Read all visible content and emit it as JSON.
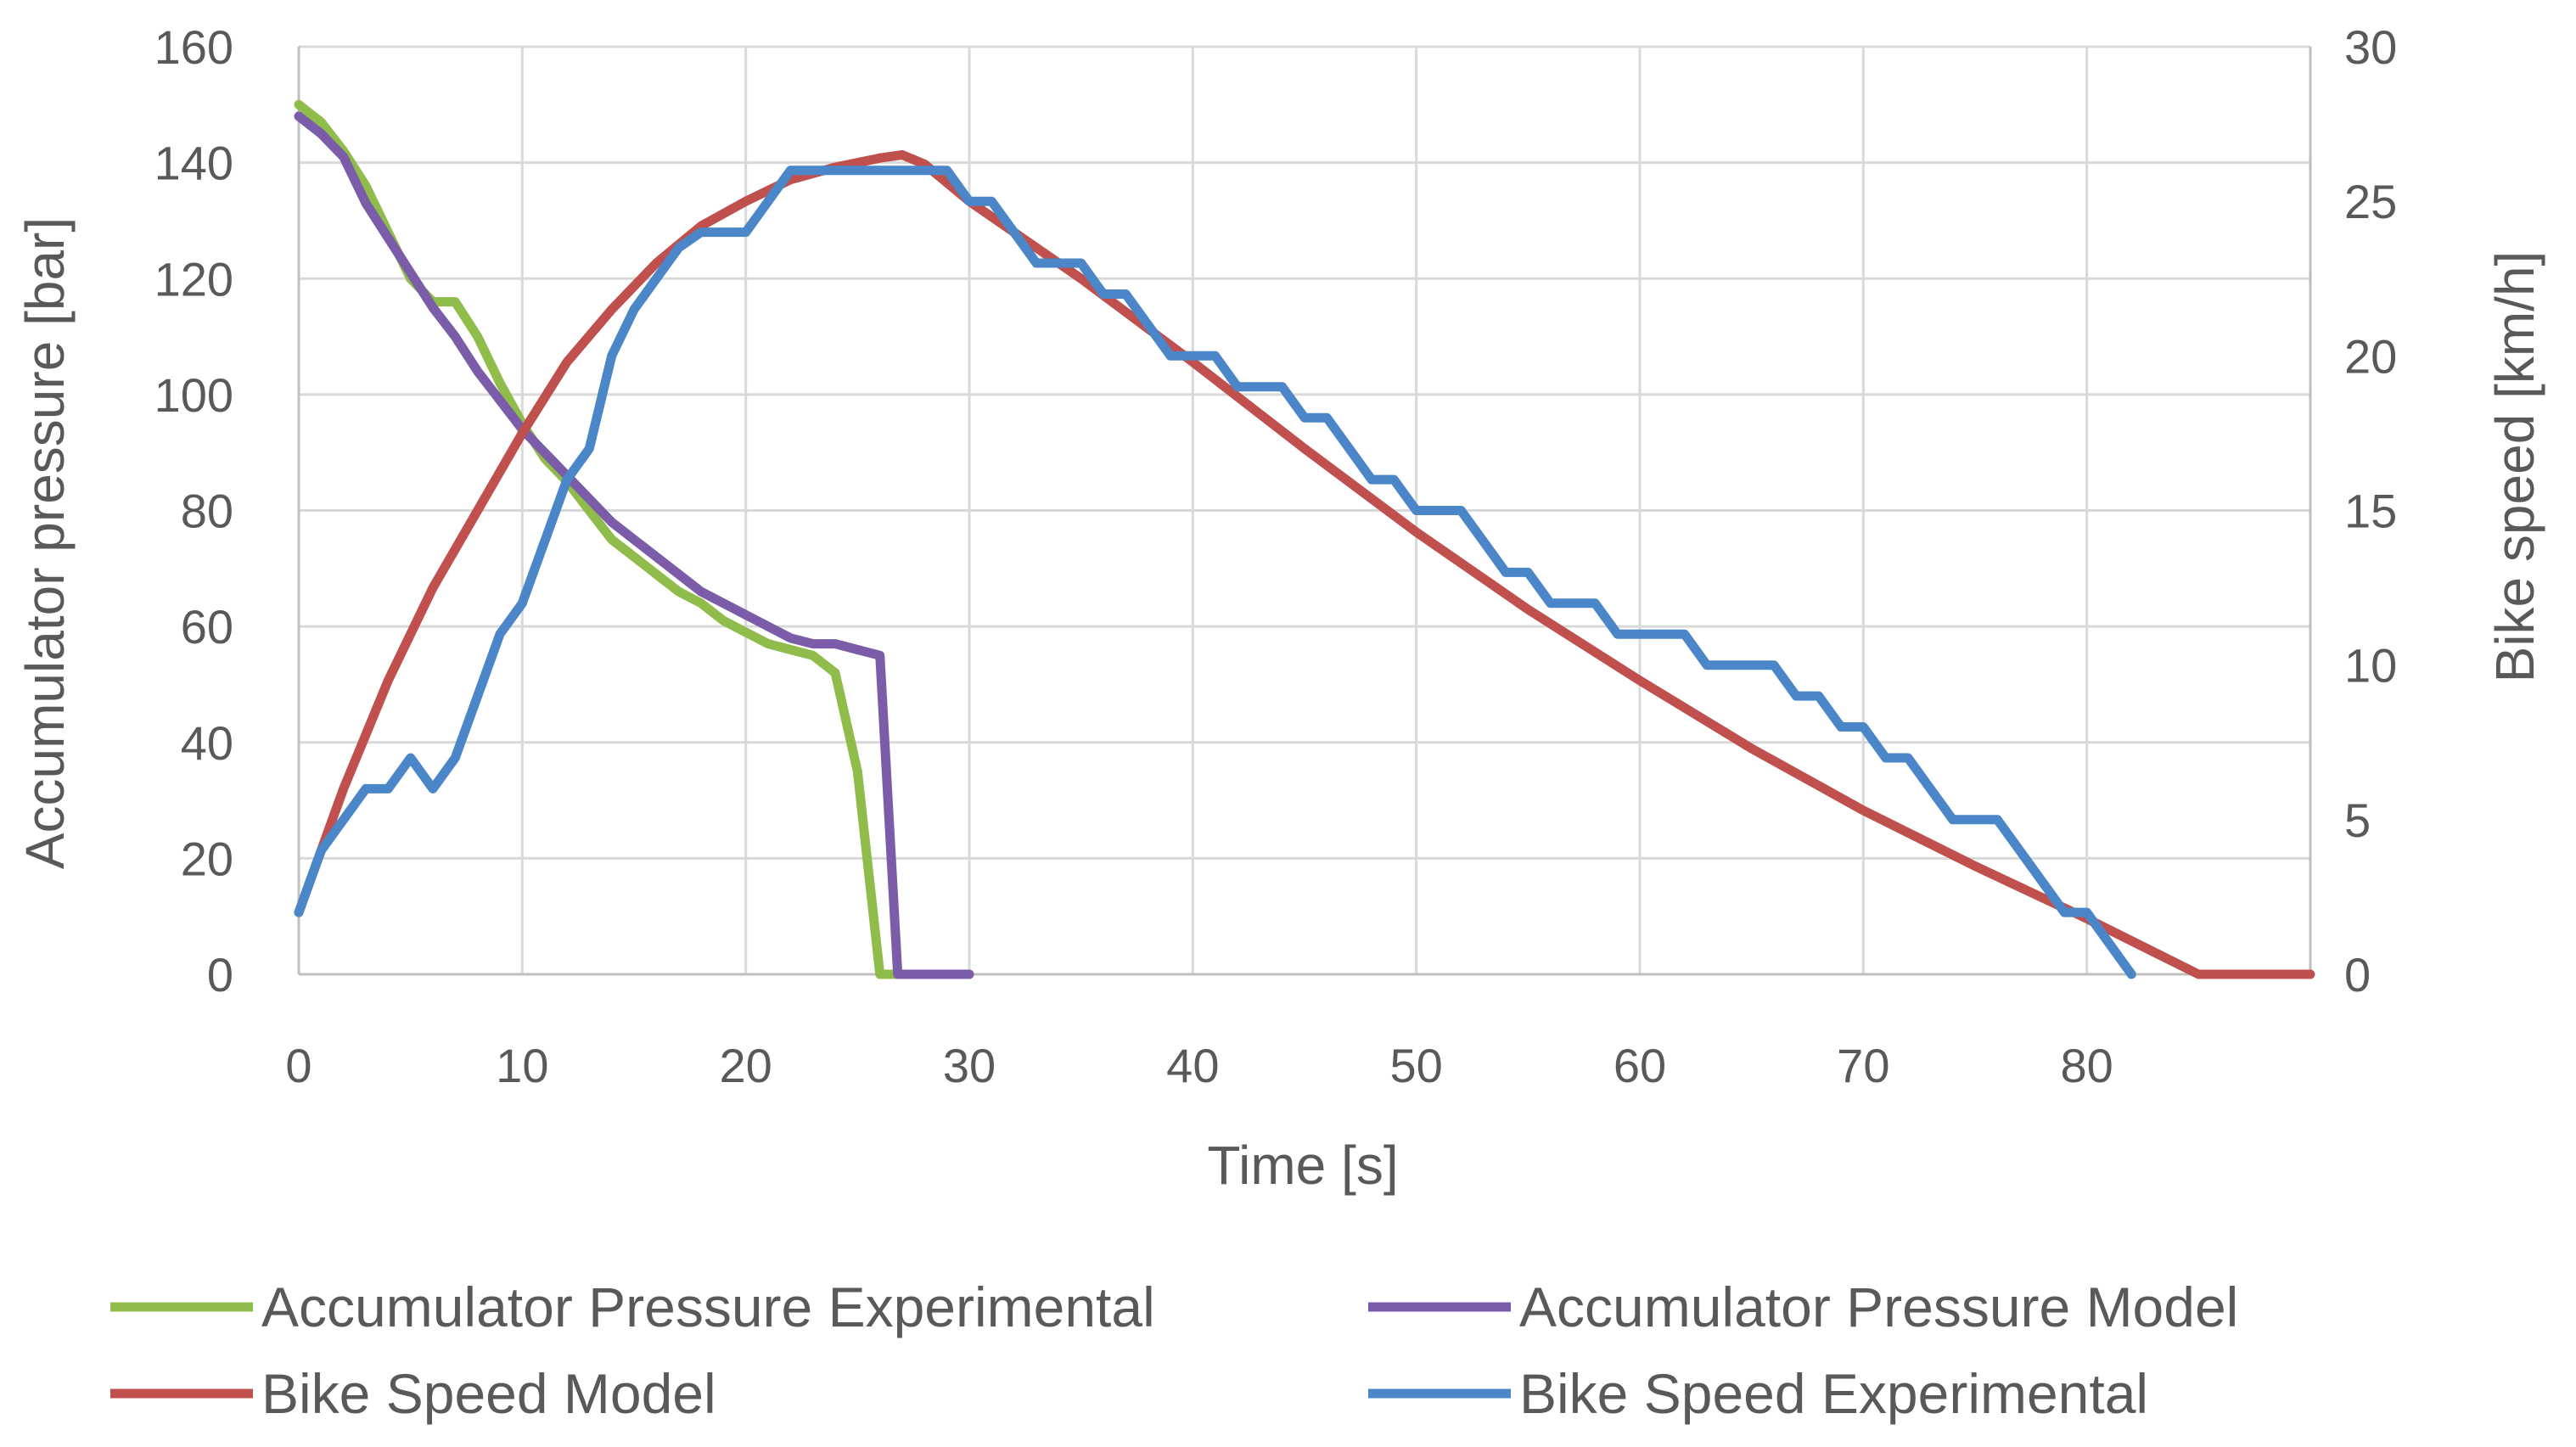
{
  "chart_data": {
    "type": "line",
    "title": "",
    "xlabel": "Time [s]",
    "ylabel_left": "Accumulator pressure [bar]",
    "ylabel_right": "Bike speed [km/h]",
    "x_ticks": [
      "0",
      "10",
      "20",
      "30",
      "40",
      "50",
      "60",
      "70",
      "80"
    ],
    "y_left_ticks": [
      "0",
      "20",
      "40",
      "60",
      "80",
      "100",
      "120",
      "140",
      "160"
    ],
    "y_right_ticks": [
      "0",
      "5",
      "10",
      "15",
      "20",
      "25",
      "30"
    ],
    "xlim": [
      0,
      90
    ],
    "ylim_left": [
      0,
      160
    ],
    "ylim_right": [
      0,
      30
    ],
    "grid": true,
    "legend_position": "bottom",
    "series": [
      {
        "name": "Accumulator Pressure Experimental",
        "axis": "left",
        "color": "#8fbc4a",
        "points": [
          [
            0,
            150
          ],
          [
            1,
            147
          ],
          [
            2,
            142
          ],
          [
            3,
            136
          ],
          [
            4,
            128
          ],
          [
            5,
            120
          ],
          [
            6,
            116
          ],
          [
            7,
            116
          ],
          [
            8,
            110
          ],
          [
            9,
            102
          ],
          [
            10,
            95
          ],
          [
            11,
            89
          ],
          [
            12,
            85
          ],
          [
            13,
            80
          ],
          [
            14,
            75
          ],
          [
            15,
            72
          ],
          [
            16,
            69
          ],
          [
            17,
            66
          ],
          [
            18,
            64
          ],
          [
            19,
            61
          ],
          [
            20,
            59
          ],
          [
            21,
            57
          ],
          [
            22,
            56
          ],
          [
            23,
            55
          ],
          [
            24,
            52
          ],
          [
            25,
            35
          ],
          [
            26,
            0
          ],
          [
            27,
            0
          ],
          [
            28,
            0
          ],
          [
            29,
            0
          ],
          [
            30,
            0
          ]
        ]
      },
      {
        "name": "Accumulator Pressure Model",
        "axis": "left",
        "color": "#7b5ca8",
        "points": [
          [
            0,
            148
          ],
          [
            1,
            145
          ],
          [
            2,
            141
          ],
          [
            3,
            133
          ],
          [
            4,
            127
          ],
          [
            5,
            121
          ],
          [
            6,
            115
          ],
          [
            7,
            110
          ],
          [
            8,
            104
          ],
          [
            9,
            99
          ],
          [
            10,
            94
          ],
          [
            11,
            90
          ],
          [
            12,
            86
          ],
          [
            13,
            82
          ],
          [
            14,
            78
          ],
          [
            15,
            75
          ],
          [
            16,
            72
          ],
          [
            17,
            69
          ],
          [
            18,
            66
          ],
          [
            19,
            64
          ],
          [
            20,
            62
          ],
          [
            21,
            60
          ],
          [
            22,
            58
          ],
          [
            23,
            57
          ],
          [
            24,
            57
          ],
          [
            25,
            56
          ],
          [
            26,
            55
          ],
          [
            26.8,
            0
          ],
          [
            27,
            0
          ],
          [
            28,
            0
          ],
          [
            29,
            0
          ],
          [
            30,
            0
          ]
        ]
      },
      {
        "name": "Bike Speed Model",
        "axis": "right",
        "color": "#c0504d",
        "points": [
          [
            0,
            2
          ],
          [
            2,
            6
          ],
          [
            4,
            9.5
          ],
          [
            6,
            12.5
          ],
          [
            8,
            15
          ],
          [
            10,
            17.5
          ],
          [
            12,
            19.8
          ],
          [
            14,
            21.5
          ],
          [
            16,
            23
          ],
          [
            18,
            24.2
          ],
          [
            20,
            25
          ],
          [
            22,
            25.7
          ],
          [
            24,
            26.1
          ],
          [
            26,
            26.4
          ],
          [
            27,
            26.5
          ],
          [
            28,
            26.2
          ],
          [
            30,
            25
          ],
          [
            35,
            22.5
          ],
          [
            40,
            19.8
          ],
          [
            45,
            17
          ],
          [
            50,
            14.3
          ],
          [
            55,
            11.8
          ],
          [
            60,
            9.5
          ],
          [
            65,
            7.3
          ],
          [
            70,
            5.3
          ],
          [
            75,
            3.5
          ],
          [
            80,
            1.8
          ],
          [
            85,
            0
          ],
          [
            90,
            0
          ]
        ]
      },
      {
        "name": "Bike Speed Experimental",
        "axis": "right",
        "color": "#4a86c8",
        "points": [
          [
            0,
            2
          ],
          [
            1,
            4
          ],
          [
            2,
            5
          ],
          [
            3,
            6
          ],
          [
            4,
            6
          ],
          [
            5,
            7
          ],
          [
            6,
            6
          ],
          [
            7,
            7
          ],
          [
            8,
            9
          ],
          [
            9,
            11
          ],
          [
            10,
            12
          ],
          [
            11,
            14
          ],
          [
            12,
            16
          ],
          [
            13,
            17
          ],
          [
            14,
            20
          ],
          [
            15,
            21.5
          ],
          [
            16,
            22.5
          ],
          [
            17,
            23.5
          ],
          [
            18,
            24
          ],
          [
            19,
            24
          ],
          [
            20,
            24
          ],
          [
            21,
            25
          ],
          [
            22,
            26
          ],
          [
            23,
            26
          ],
          [
            24,
            26
          ],
          [
            25,
            26
          ],
          [
            26,
            26
          ],
          [
            27,
            26
          ],
          [
            28,
            26
          ],
          [
            29,
            26
          ],
          [
            30,
            25
          ],
          [
            31,
            25
          ],
          [
            32,
            24
          ],
          [
            33,
            23
          ],
          [
            34,
            23
          ],
          [
            35,
            23
          ],
          [
            36,
            22
          ],
          [
            37,
            22
          ],
          [
            38,
            21
          ],
          [
            39,
            20
          ],
          [
            40,
            20
          ],
          [
            41,
            20
          ],
          [
            42,
            19
          ],
          [
            43,
            19
          ],
          [
            44,
            19
          ],
          [
            45,
            18
          ],
          [
            46,
            18
          ],
          [
            47,
            17
          ],
          [
            48,
            16
          ],
          [
            49,
            16
          ],
          [
            50,
            15
          ],
          [
            51,
            15
          ],
          [
            52,
            15
          ],
          [
            53,
            14
          ],
          [
            54,
            13
          ],
          [
            55,
            13
          ],
          [
            56,
            12
          ],
          [
            57,
            12
          ],
          [
            58,
            12
          ],
          [
            59,
            11
          ],
          [
            60,
            11
          ],
          [
            61,
            11
          ],
          [
            62,
            11
          ],
          [
            63,
            10
          ],
          [
            64,
            10
          ],
          [
            65,
            10
          ],
          [
            66,
            10
          ],
          [
            67,
            9
          ],
          [
            68,
            9
          ],
          [
            69,
            8
          ],
          [
            70,
            8
          ],
          [
            71,
            7
          ],
          [
            72,
            7
          ],
          [
            73,
            6
          ],
          [
            74,
            5
          ],
          [
            75,
            5
          ],
          [
            76,
            5
          ],
          [
            77,
            4
          ],
          [
            78,
            3
          ],
          [
            79,
            2
          ],
          [
            80,
            2
          ],
          [
            81,
            1
          ],
          [
            82,
            0
          ]
        ]
      }
    ]
  }
}
